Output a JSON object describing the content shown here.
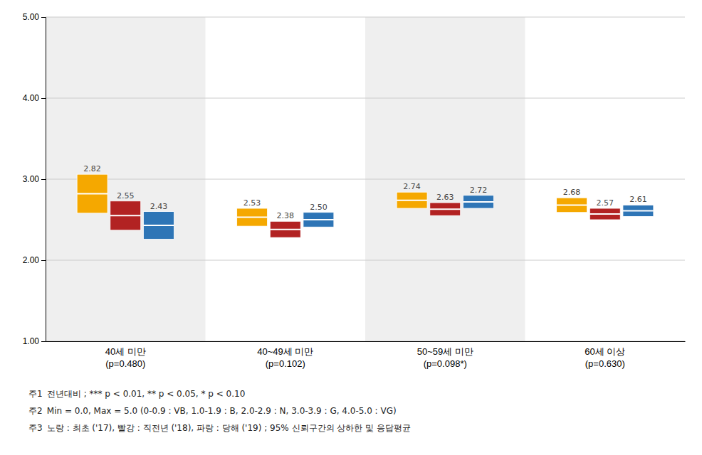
{
  "chart_data": {
    "type": "bar",
    "categories": [
      "40세 미만\n(p=0.480)",
      "40~49세 미만\n(p=0.102)",
      "50~59세 미만\n(p=0.098*)",
      "60세 이상\n(p=0.630)"
    ],
    "series": [
      {
        "color": "#F5A800",
        "values": [
          2.82,
          2.53,
          2.74,
          2.68
        ],
        "value_labels": [
          "2.82",
          "2.53",
          "2.74",
          "2.68"
        ],
        "ci_low": [
          2.58,
          2.42,
          2.64,
          2.59
        ],
        "ci_high": [
          3.06,
          2.64,
          2.84,
          2.77
        ]
      },
      {
        "color": "#B22222",
        "values": [
          2.55,
          2.38,
          2.63,
          2.57
        ],
        "value_labels": [
          "2.55",
          "2.38",
          "2.63",
          "2.57"
        ],
        "ci_low": [
          2.37,
          2.28,
          2.55,
          2.5
        ],
        "ci_high": [
          2.73,
          2.48,
          2.71,
          2.64
        ]
      },
      {
        "color": "#2E75B6",
        "values": [
          2.43,
          2.5,
          2.72,
          2.61
        ],
        "value_labels": [
          "2.43",
          "2.50",
          "2.72",
          "2.61"
        ],
        "ci_low": [
          2.26,
          2.41,
          2.64,
          2.54
        ],
        "ci_high": [
          2.6,
          2.59,
          2.8,
          2.68
        ]
      }
    ],
    "ylim": [
      1.0,
      5.0
    ],
    "yticks": [
      {
        "value": 1.0,
        "label": "1.00"
      },
      {
        "value": 2.0,
        "label": "2.00"
      },
      {
        "value": 3.0,
        "label": "3.00"
      },
      {
        "value": 4.0,
        "label": "4.00"
      },
      {
        "value": 5.0,
        "label": "5.00"
      }
    ],
    "grid": true,
    "data_labels": true,
    "annotations": [
      "주1  전년대비 ; *** p < 0.01, ** p < 0.05, * p < 0.10",
      "주2  Min = 0.0, Max = 5.0 (0-0.9 : VB, 1.0-1.9 : B, 2.0-2.9 : N, 3.0-3.9 : G, 4.0-5.0 : VG)",
      "주3  노랑 : 최초 ('17), 빨강 : 직전년 ('18), 파랑 : 당해 ('19) ; 95% 신뢰구간의 상하한 및 응답평균"
    ]
  }
}
